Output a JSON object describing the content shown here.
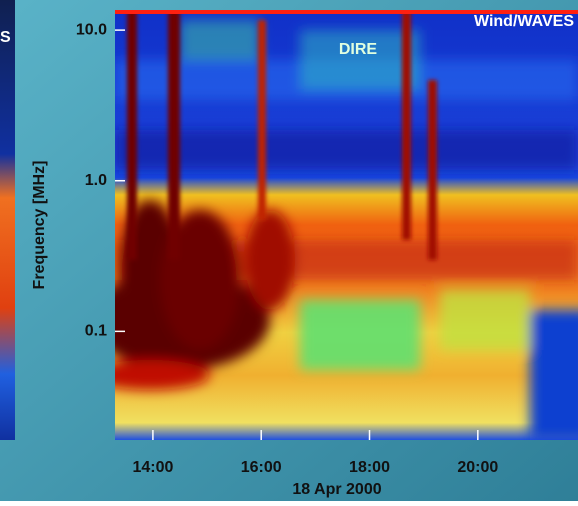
{
  "chart_data": {
    "type": "spectrogram",
    "title": "Wind/WAVES",
    "annotation": "DIRE",
    "side_panel_label": "S",
    "ylabel": "Frequency [MHz]",
    "xlabel": "18 Apr 2000",
    "ylog": true,
    "xlim": [
      13.3,
      21.85
    ],
    "xticks": [
      {
        "value": 14,
        "label": "14:00"
      },
      {
        "value": 16,
        "label": "16:00"
      },
      {
        "value": 18,
        "label": "18:00"
      },
      {
        "value": 20,
        "label": "20:00"
      }
    ],
    "ylim": [
      0.019,
      13.6
    ],
    "yticks": [
      {
        "value": 10,
        "label": "10.0"
      },
      {
        "value": 1,
        "label": "1.0"
      },
      {
        "value": 0.1,
        "label": "0.1"
      }
    ]
  }
}
